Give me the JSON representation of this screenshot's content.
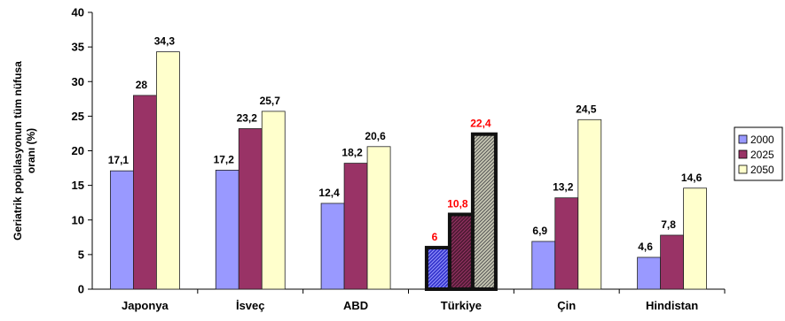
{
  "chart_data": {
    "type": "bar",
    "ylabel_lines": [
      "Geriatrik popülasyonun  tüm nüfusa",
      "oranı (%)"
    ],
    "ylim": [
      0,
      40
    ],
    "yticks": [
      0,
      5,
      10,
      15,
      20,
      25,
      30,
      35,
      40
    ],
    "categories": [
      "Japonya",
      "İsveç",
      "ABD",
      "Türkiye",
      "Çin",
      "Hindistan"
    ],
    "highlight_category": "Türkiye",
    "series": [
      {
        "name": "2000",
        "color": "#9999ff",
        "values": [
          17.1,
          17.2,
          12.4,
          6,
          6.9,
          4.6
        ],
        "labels": [
          "17,1",
          "17,2",
          "12,4",
          "6",
          "6,9",
          "4,6"
        ]
      },
      {
        "name": "2025",
        "color": "#993366",
        "values": [
          28,
          23.2,
          18.2,
          10.8,
          13.2,
          7.8
        ],
        "labels": [
          "28",
          "23,2",
          "18,2",
          "10,8",
          "13,2",
          "7,8"
        ]
      },
      {
        "name": "2050",
        "color": "#ffffcc",
        "values": [
          34.3,
          25.7,
          20.6,
          22.4,
          24.5,
          14.6
        ],
        "labels": [
          "34,3",
          "25,7",
          "20,6",
          "22,4",
          "24,5",
          "14,6"
        ]
      }
    ],
    "highlight_label_color": "#ff0000",
    "grid": false,
    "legend_position": "right"
  }
}
